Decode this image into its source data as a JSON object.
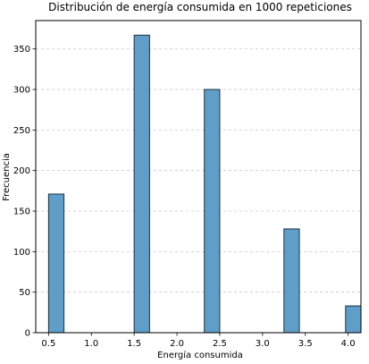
{
  "chart_data": {
    "type": "bar",
    "title": "Distribución de energía consumida en 1000 repeticiones",
    "xlabel": "Energía consumida",
    "ylabel": "Frecuencia",
    "xlim": [
      0.35,
      4.15
    ],
    "ylim": [
      0,
      385
    ],
    "xticks": [
      "0.5",
      "1.0",
      "1.5",
      "2.0",
      "2.5",
      "3.0",
      "3.5",
      "4.0"
    ],
    "yticks": [
      "0",
      "50",
      "100",
      "150",
      "200",
      "250",
      "300",
      "350"
    ],
    "grid": "horizontal-dashed",
    "bar_color": "#5f9ec9",
    "bar_edge_color": "#1f2f3f",
    "bars": [
      {
        "x_start": 0.5,
        "x_end": 0.68,
        "value": 171
      },
      {
        "x_start": 1.5,
        "x_end": 1.68,
        "value": 367
      },
      {
        "x_start": 2.32,
        "x_end": 2.5,
        "value": 300
      },
      {
        "x_start": 3.25,
        "x_end": 3.43,
        "value": 128
      },
      {
        "x_start": 3.97,
        "x_end": 4.15,
        "value": 33
      }
    ]
  }
}
